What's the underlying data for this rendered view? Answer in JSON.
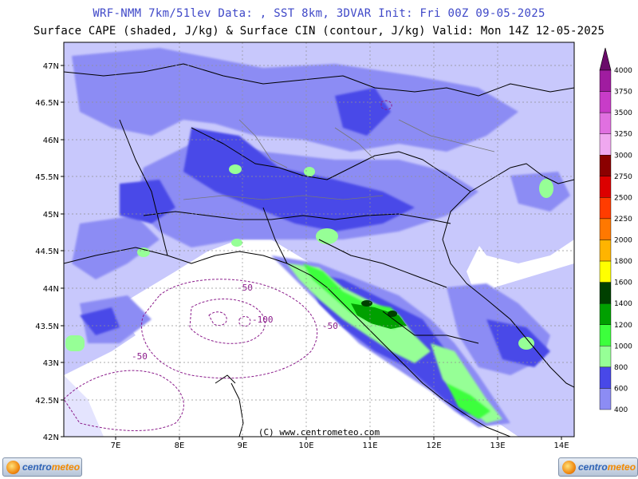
{
  "header": {
    "line1": "WRF-NMM 7km/51lev  Data: , SST 8km, 3DVAR  Init: Fri 00Z 09-05-2025",
    "line2": "Surface CAPE (shaded, J/kg) & Surface CIN (contour, J/kg)  Valid: Mon 14Z 12-05-2025"
  },
  "axes": {
    "lat_labels": [
      "47N",
      "46.5N",
      "46N",
      "45.5N",
      "45N",
      "44.5N",
      "44N",
      "43.5N",
      "43N",
      "42.5N",
      "42N"
    ],
    "lon_labels": [
      "7E",
      "8E",
      "9E",
      "10E",
      "11E",
      "12E",
      "13E",
      "14E"
    ]
  },
  "map_labels": {
    "cin_label_1": "-50",
    "cin_label_2": "-50",
    "cin_label_3": "-100",
    "cin_label_4": "-50",
    "copyright": "(C) www.centrometeo.com"
  },
  "colorbar": {
    "levels": [
      "4000",
      "3750",
      "3500",
      "3250",
      "3000",
      "2750",
      "2500",
      "2250",
      "2000",
      "1800",
      "1600",
      "1400",
      "1200",
      "1000",
      "800",
      "600",
      "400"
    ],
    "colors": {
      "c4000": "#a01ca0",
      "c3750": "#c83cc8",
      "c3500": "#e070e0",
      "c3250": "#f0a8f0",
      "c3000": "#8b0000",
      "c2750": "#dc0000",
      "c2500": "#ff3c00",
      "c2250": "#ff7800",
      "c2000": "#ffb400",
      "c1800": "#ffff00",
      "c1600": "#004000",
      "c1400": "#00a000",
      "c1200": "#3cff3c",
      "c1000": "#96ff96",
      "c800": "#4848e8",
      "c600": "#8c8cf4",
      "c400": "#c8c8fc"
    }
  },
  "logos": {
    "brand_a": "centro",
    "brand_b": "meteo"
  }
}
